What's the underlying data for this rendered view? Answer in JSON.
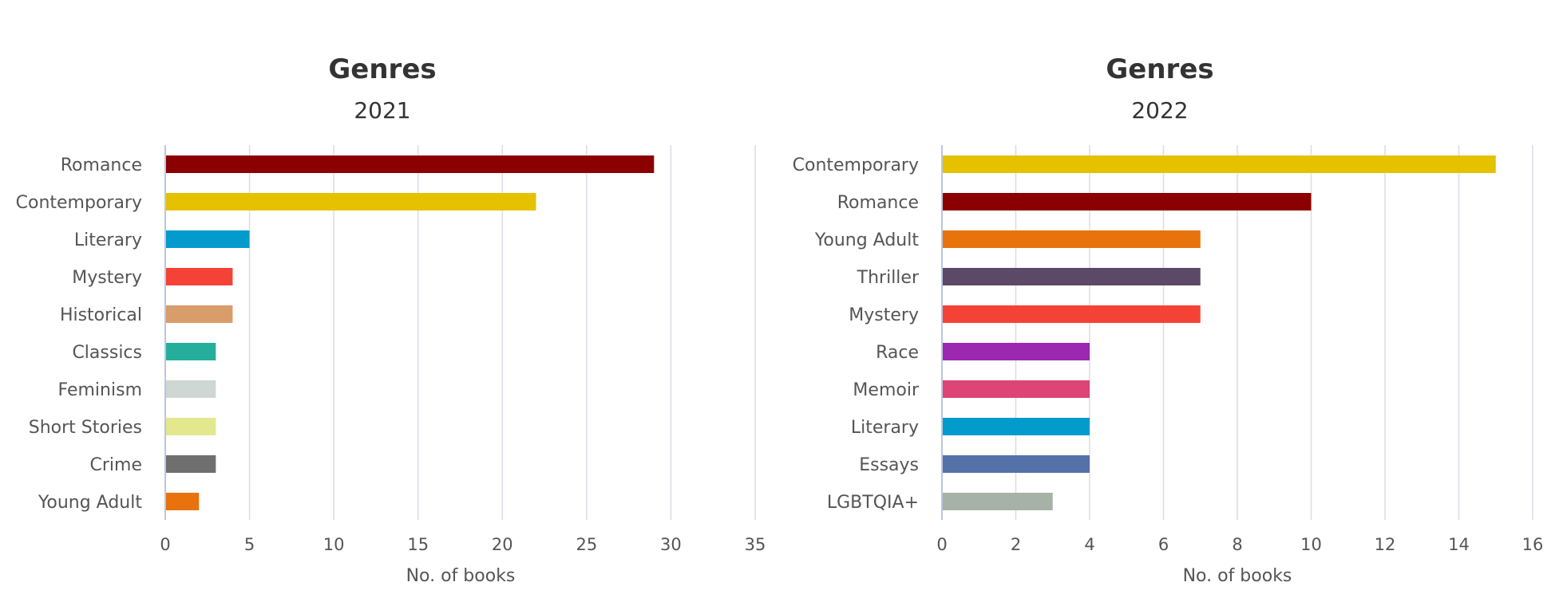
{
  "chart_data": [
    {
      "type": "bar",
      "orientation": "horizontal",
      "title": "Genres",
      "subtitle": "2021",
      "xlabel": "No. of books",
      "ylabel": "",
      "xlim": [
        0,
        35
      ],
      "ticks": [
        0,
        5,
        10,
        15,
        20,
        25,
        30,
        35
      ],
      "grid": true,
      "categories": [
        "Romance",
        "Contemporary",
        "Literary",
        "Mystery",
        "Historical",
        "Classics",
        "Feminism",
        "Short Stories",
        "Crime",
        "Young Adult"
      ],
      "values": [
        29,
        22,
        5,
        4,
        4,
        3,
        3,
        3,
        3,
        2
      ],
      "colors": [
        "#8b0000",
        "#e5c100",
        "#039bcc",
        "#f44336",
        "#d99c6b",
        "#26ae9c",
        "#ced7d4",
        "#e3e78d",
        "#6f6f6f",
        "#e8720c"
      ]
    },
    {
      "type": "bar",
      "orientation": "horizontal",
      "title": "Genres",
      "subtitle": "2022",
      "xlabel": "No. of books",
      "ylabel": "",
      "xlim": [
        0,
        16
      ],
      "ticks": [
        0,
        2,
        4,
        6,
        8,
        10,
        12,
        14,
        16
      ],
      "grid": true,
      "categories": [
        "Contemporary",
        "Romance",
        "Young Adult",
        "Thriller",
        "Mystery",
        "Race",
        "Memoir",
        "Literary",
        "Essays",
        "LGBTQIA+"
      ],
      "values": [
        15,
        10,
        7,
        7,
        7,
        4,
        4,
        4,
        4,
        3
      ],
      "colors": [
        "#e5c100",
        "#8b0000",
        "#e8720c",
        "#5c4867",
        "#f44336",
        "#9c27b0",
        "#dc4575",
        "#039bcc",
        "#5572a7",
        "#a6b2a5"
      ]
    }
  ]
}
